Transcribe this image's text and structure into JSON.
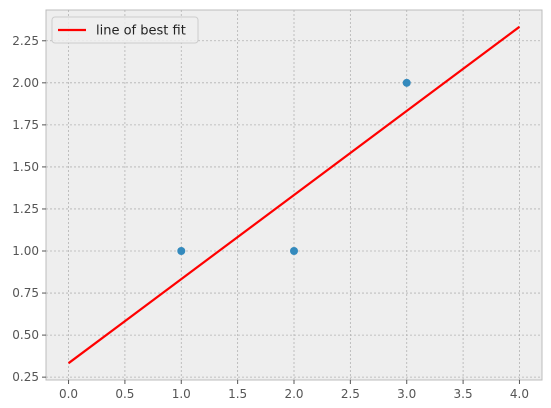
{
  "chart_data": {
    "type": "scatter",
    "title": "",
    "xlabel": "",
    "ylabel": "",
    "xlim": [
      -0.2,
      4.2
    ],
    "ylim": [
      0.233,
      2.433
    ],
    "grid": true,
    "legend_position": "top-left",
    "x_ticks": [
      "0.0",
      "0.5",
      "1.0",
      "1.5",
      "2.0",
      "2.5",
      "3.0",
      "3.5",
      "4.0"
    ],
    "y_ticks": [
      "0.25",
      "0.50",
      "0.75",
      "1.00",
      "1.25",
      "1.50",
      "1.75",
      "2.00",
      "2.25"
    ],
    "series": [
      {
        "kind": "scatter",
        "color": "#348ABD",
        "points": [
          {
            "x": 1,
            "y": 1
          },
          {
            "x": 2,
            "y": 1
          },
          {
            "x": 3,
            "y": 2
          }
        ]
      },
      {
        "kind": "line",
        "name": "line of best fit",
        "color": "#FF0000",
        "points": [
          {
            "x": 0,
            "y": 0.333
          },
          {
            "x": 4,
            "y": 2.333
          }
        ]
      }
    ]
  }
}
